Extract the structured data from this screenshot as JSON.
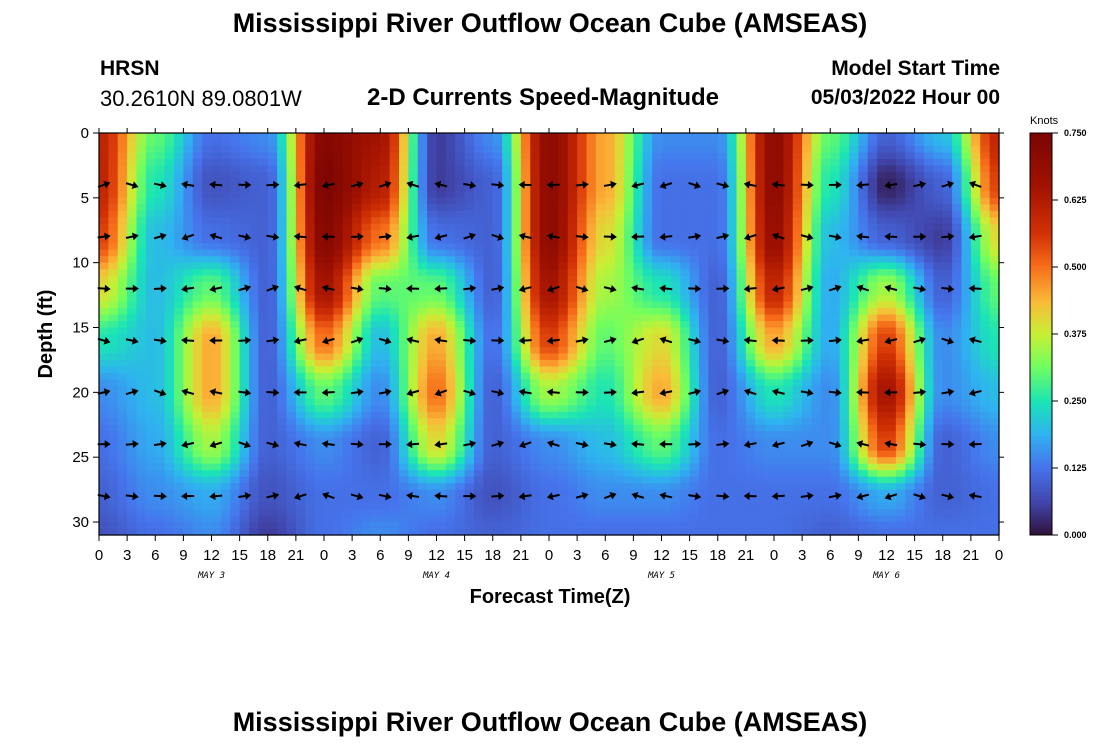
{
  "header": {
    "title": "Mississippi River Outflow Ocean Cube (AMSEAS)",
    "station": "HRSN",
    "coordinates": "30.2610N  89.0801W",
    "variable": "2-D Currents Speed-Magnitude",
    "model_start_label": "Model Start Time",
    "model_start_value": "05/03/2022 Hour 00"
  },
  "footer": {
    "title": "Mississippi River Outflow Ocean Cube (AMSEAS)"
  },
  "chart_data": {
    "type": "heatmap",
    "title": "2-D Currents Speed-Magnitude",
    "xlabel": "Forecast Time(Z)",
    "ylabel": "Depth (ft)",
    "x_range": [
      0,
      96
    ],
    "y_range": [
      0,
      31
    ],
    "x_tick_labels": [
      "0",
      "3",
      "6",
      "9",
      "12",
      "15",
      "18",
      "21",
      "0",
      "3",
      "6",
      "9",
      "12",
      "15",
      "18",
      "21",
      "0",
      "3",
      "6",
      "9",
      "12",
      "15",
      "18",
      "21",
      "0",
      "3",
      "6",
      "9",
      "12",
      "15",
      "18",
      "21",
      "0"
    ],
    "day_labels": [
      {
        "label": "MAY 3",
        "hour": 12
      },
      {
        "label": "MAY 4",
        "hour": 36
      },
      {
        "label": "MAY 5",
        "hour": 60
      },
      {
        "label": "MAY 6",
        "hour": 84
      }
    ],
    "y_ticks": [
      0,
      5,
      10,
      15,
      20,
      25,
      30
    ],
    "colorbar": {
      "units": "Knots",
      "min": 0,
      "max": 0.75,
      "tick_labels": [
        "0.750",
        "0.625",
        "0.500",
        "0.375",
        "0.250",
        "0.125",
        "0.000"
      ]
    },
    "vector_depths_ft": [
      4,
      8,
      12,
      16,
      20,
      24,
      28
    ],
    "vector_hours": [
      0,
      3,
      6,
      9,
      12,
      15,
      18,
      21,
      24,
      27,
      30,
      33,
      36,
      39,
      42,
      45,
      48,
      51,
      54,
      57,
      60,
      63,
      66,
      69,
      72,
      75,
      78,
      81,
      84,
      87,
      90,
      93
    ],
    "speed_grid": {
      "hours": [
        0,
        6,
        12,
        18,
        24,
        30,
        36,
        42,
        48,
        54,
        60,
        66,
        72,
        78,
        84,
        90,
        96
      ],
      "depths_ft": [
        0,
        4,
        8,
        12,
        16,
        20,
        24,
        28,
        31
      ],
      "values": [
        [
          0.6,
          0.6,
          0.55,
          0.4,
          0.25,
          0.15,
          0.12,
          0.1,
          0.08
        ],
        [
          0.3,
          0.25,
          0.2,
          0.2,
          0.2,
          0.2,
          0.18,
          0.15,
          0.12
        ],
        [
          0.12,
          0.08,
          0.12,
          0.3,
          0.45,
          0.45,
          0.35,
          0.18,
          0.15
        ],
        [
          0.15,
          0.1,
          0.1,
          0.1,
          0.1,
          0.1,
          0.1,
          0.08,
          0.05
        ],
        [
          0.72,
          0.74,
          0.72,
          0.65,
          0.5,
          0.3,
          0.15,
          0.12,
          0.12
        ],
        [
          0.65,
          0.62,
          0.5,
          0.3,
          0.2,
          0.15,
          0.1,
          0.12,
          0.15
        ],
        [
          0.05,
          0.05,
          0.12,
          0.3,
          0.45,
          0.5,
          0.4,
          0.15,
          0.12
        ],
        [
          0.15,
          0.1,
          0.1,
          0.1,
          0.12,
          0.1,
          0.1,
          0.08,
          0.1
        ],
        [
          0.7,
          0.7,
          0.7,
          0.65,
          0.55,
          0.35,
          0.15,
          0.12,
          0.12
        ],
        [
          0.45,
          0.45,
          0.4,
          0.35,
          0.3,
          0.25,
          0.2,
          0.15,
          0.12
        ],
        [
          0.15,
          0.12,
          0.12,
          0.25,
          0.4,
          0.45,
          0.3,
          0.15,
          0.12
        ],
        [
          0.15,
          0.12,
          0.12,
          0.1,
          0.1,
          0.1,
          0.12,
          0.12,
          0.12
        ],
        [
          0.7,
          0.7,
          0.68,
          0.6,
          0.45,
          0.25,
          0.15,
          0.12,
          0.12
        ],
        [
          0.3,
          0.25,
          0.2,
          0.18,
          0.18,
          0.15,
          0.15,
          0.12,
          0.1
        ],
        [
          0.1,
          0.02,
          0.1,
          0.35,
          0.55,
          0.65,
          0.55,
          0.18,
          0.12
        ],
        [
          0.2,
          0.1,
          0.05,
          0.1,
          0.15,
          0.15,
          0.1,
          0.1,
          0.12
        ],
        [
          0.6,
          0.55,
          0.4,
          0.3,
          0.25,
          0.2,
          0.15,
          0.12,
          0.12
        ]
      ]
    }
  }
}
